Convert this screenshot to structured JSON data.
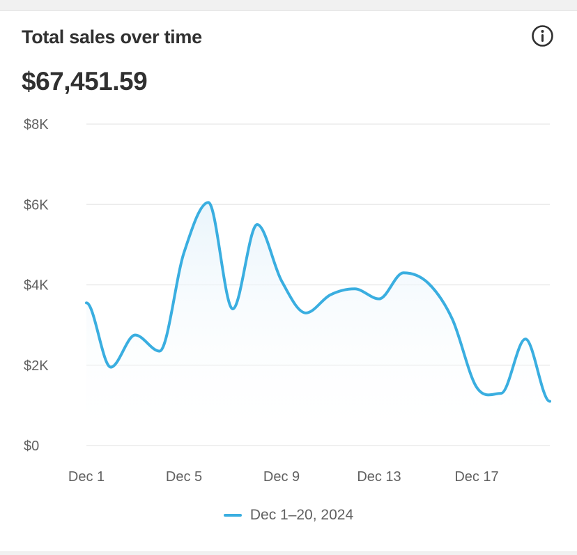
{
  "card": {
    "title": "Total sales over time",
    "total": "$67,451.59",
    "info_icon": "info-circle-icon"
  },
  "colors": {
    "line": "#3aaee0",
    "area": "#eef7fc",
    "grid": "#ebebeb",
    "text": "#303030",
    "axis_text": "#616161"
  },
  "chart_data": {
    "type": "area",
    "title": "Total sales over time",
    "xlabel": "",
    "ylabel": "",
    "x": [
      "Dec 1",
      "Dec 2",
      "Dec 3",
      "Dec 4",
      "Dec 5",
      "Dec 6",
      "Dec 7",
      "Dec 8",
      "Dec 9",
      "Dec 10",
      "Dec 11",
      "Dec 12",
      "Dec 13",
      "Dec 14",
      "Dec 15",
      "Dec 16",
      "Dec 17",
      "Dec 18",
      "Dec 19",
      "Dec 20"
    ],
    "x_tick_labels": [
      "Dec 1",
      "Dec 5",
      "Dec 9",
      "Dec 13",
      "Dec 17"
    ],
    "x_tick_indices": [
      0,
      4,
      8,
      12,
      16
    ],
    "y_ticks": [
      0,
      2000,
      4000,
      6000,
      8000
    ],
    "y_tick_labels": [
      "$0",
      "$2K",
      "$4K",
      "$6K",
      "$8K"
    ],
    "ylim": [
      0,
      8000
    ],
    "grid": true,
    "legend_position": "bottom-center",
    "series": [
      {
        "name": "Dec 1–20, 2024",
        "values": [
          3550,
          1950,
          2750,
          2350,
          4800,
          6050,
          3400,
          5500,
          4100,
          3300,
          3750,
          3900,
          3650,
          4300,
          4050,
          3150,
          1450,
          1300,
          2650,
          1100
        ]
      }
    ]
  },
  "legend": {
    "label": "Dec 1–20, 2024"
  }
}
